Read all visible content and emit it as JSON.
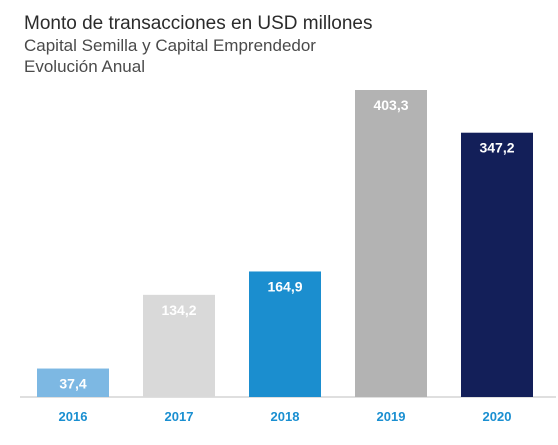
{
  "chart_data": {
    "type": "bar",
    "title": "Monto de transacciones en USD millones",
    "subtitle_lines": [
      "Capital Semilla y Capital Emprendedor",
      "Evolución Anual"
    ],
    "categories": [
      "2016",
      "2017",
      "2018",
      "2019",
      "2020"
    ],
    "values": [
      37.4,
      134.2,
      164.9,
      403.3,
      347.2
    ],
    "value_labels": [
      "37,4",
      "134,2",
      "164,9",
      "403,3",
      "347,2"
    ],
    "bar_colors": [
      "#7db8e3",
      "#d9d9d9",
      "#1b8ecf",
      "#b3b3b3",
      "#131f59"
    ],
    "tick_label_color": "#1a8fd1",
    "xlabel": "",
    "ylabel": "",
    "grid": false,
    "legend": "none"
  }
}
